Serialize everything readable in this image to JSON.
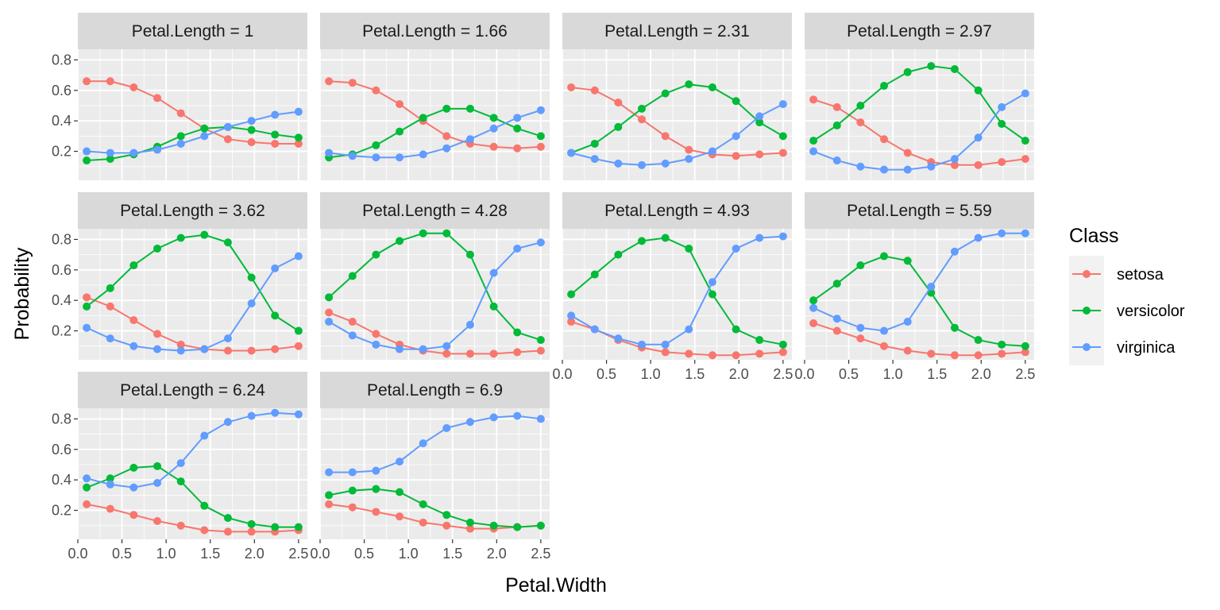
{
  "chart_data": {
    "type": "line",
    "xlabel": "Petal.Width",
    "ylabel": "Probability",
    "xlim": [
      0.0,
      2.6
    ],
    "ylim": [
      0.01,
      0.87
    ],
    "x_ticks": [
      "0.0",
      "0.5",
      "1.0",
      "1.5",
      "2.0",
      "2.5"
    ],
    "y_ticks": [
      "0.2",
      "0.4",
      "0.6",
      "0.8"
    ],
    "grid": true,
    "legend": {
      "title": "Class",
      "position": "right",
      "entries": [
        "setosa",
        "versicolor",
        "virginica"
      ]
    },
    "colors": {
      "setosa": "#F8766D",
      "versicolor": "#00BA38",
      "virginica": "#619CFF",
      "panel_bg": "#EBEBEB",
      "strip_bg": "#D9D9D9",
      "grid": "#FFFFFF"
    },
    "x": [
      0.1,
      0.367,
      0.633,
      0.9,
      1.167,
      1.433,
      1.7,
      1.967,
      2.233,
      2.5
    ],
    "panels": [
      {
        "label": "Petal.Length = 1",
        "series": [
          {
            "name": "setosa",
            "values": [
              0.66,
              0.66,
              0.62,
              0.55,
              0.45,
              0.35,
              0.28,
              0.26,
              0.25,
              0.25
            ]
          },
          {
            "name": "versicolor",
            "values": [
              0.14,
              0.15,
              0.18,
              0.23,
              0.3,
              0.35,
              0.36,
              0.34,
              0.31,
              0.29
            ]
          },
          {
            "name": "virginica",
            "values": [
              0.2,
              0.19,
              0.19,
              0.21,
              0.25,
              0.3,
              0.36,
              0.4,
              0.44,
              0.46
            ]
          }
        ]
      },
      {
        "label": "Petal.Length = 1.66",
        "series": [
          {
            "name": "setosa",
            "values": [
              0.66,
              0.65,
              0.6,
              0.51,
              0.4,
              0.3,
              0.25,
              0.23,
              0.22,
              0.23
            ]
          },
          {
            "name": "versicolor",
            "values": [
              0.16,
              0.18,
              0.24,
              0.33,
              0.42,
              0.48,
              0.48,
              0.42,
              0.35,
              0.3
            ]
          },
          {
            "name": "virginica",
            "values": [
              0.19,
              0.17,
              0.16,
              0.16,
              0.18,
              0.22,
              0.28,
              0.35,
              0.42,
              0.47
            ]
          }
        ]
      },
      {
        "label": "Petal.Length = 2.31",
        "series": [
          {
            "name": "setosa",
            "values": [
              0.62,
              0.6,
              0.52,
              0.41,
              0.3,
              0.21,
              0.18,
              0.17,
              0.18,
              0.19
            ]
          },
          {
            "name": "versicolor",
            "values": [
              0.19,
              0.25,
              0.36,
              0.48,
              0.58,
              0.64,
              0.62,
              0.53,
              0.39,
              0.3
            ]
          },
          {
            "name": "virginica",
            "values": [
              0.19,
              0.15,
              0.12,
              0.11,
              0.12,
              0.15,
              0.2,
              0.3,
              0.43,
              0.51
            ]
          }
        ]
      },
      {
        "label": "Petal.Length = 2.97",
        "series": [
          {
            "name": "setosa",
            "values": [
              0.54,
              0.49,
              0.39,
              0.28,
              0.19,
              0.13,
              0.11,
              0.11,
              0.13,
              0.15
            ]
          },
          {
            "name": "versicolor",
            "values": [
              0.27,
              0.37,
              0.5,
              0.63,
              0.72,
              0.76,
              0.74,
              0.6,
              0.38,
              0.27
            ]
          },
          {
            "name": "virginica",
            "values": [
              0.2,
              0.14,
              0.1,
              0.08,
              0.08,
              0.1,
              0.15,
              0.29,
              0.49,
              0.58
            ]
          }
        ]
      },
      {
        "label": "Petal.Length = 3.62",
        "series": [
          {
            "name": "setosa",
            "values": [
              0.42,
              0.36,
              0.27,
              0.18,
              0.11,
              0.08,
              0.07,
              0.07,
              0.08,
              0.1
            ]
          },
          {
            "name": "versicolor",
            "values": [
              0.36,
              0.48,
              0.63,
              0.74,
              0.81,
              0.83,
              0.78,
              0.55,
              0.3,
              0.2
            ]
          },
          {
            "name": "virginica",
            "values": [
              0.22,
              0.15,
              0.1,
              0.08,
              0.07,
              0.08,
              0.15,
              0.38,
              0.61,
              0.69
            ]
          }
        ]
      },
      {
        "label": "Petal.Length = 4.28",
        "series": [
          {
            "name": "setosa",
            "values": [
              0.32,
              0.26,
              0.18,
              0.11,
              0.07,
              0.05,
              0.05,
              0.05,
              0.06,
              0.07
            ]
          },
          {
            "name": "versicolor",
            "values": [
              0.42,
              0.56,
              0.7,
              0.79,
              0.84,
              0.84,
              0.7,
              0.36,
              0.19,
              0.14
            ]
          },
          {
            "name": "virginica",
            "values": [
              0.26,
              0.17,
              0.11,
              0.08,
              0.08,
              0.1,
              0.24,
              0.58,
              0.74,
              0.78
            ]
          }
        ]
      },
      {
        "label": "Petal.Length = 4.93",
        "series": [
          {
            "name": "setosa",
            "values": [
              0.26,
              0.21,
              0.14,
              0.09,
              0.06,
              0.05,
              0.04,
              0.04,
              0.05,
              0.06
            ]
          },
          {
            "name": "versicolor",
            "values": [
              0.44,
              0.57,
              0.7,
              0.79,
              0.81,
              0.74,
              0.44,
              0.21,
              0.14,
              0.11
            ]
          },
          {
            "name": "virginica",
            "values": [
              0.3,
              0.21,
              0.15,
              0.11,
              0.11,
              0.21,
              0.52,
              0.74,
              0.81,
              0.82
            ]
          }
        ]
      },
      {
        "label": "Petal.Length = 5.59",
        "series": [
          {
            "name": "setosa",
            "values": [
              0.25,
              0.2,
              0.15,
              0.1,
              0.07,
              0.05,
              0.04,
              0.04,
              0.05,
              0.06
            ]
          },
          {
            "name": "versicolor",
            "values": [
              0.4,
              0.51,
              0.63,
              0.69,
              0.66,
              0.45,
              0.22,
              0.14,
              0.11,
              0.1
            ]
          },
          {
            "name": "virginica",
            "values": [
              0.35,
              0.28,
              0.22,
              0.2,
              0.26,
              0.49,
              0.72,
              0.81,
              0.84,
              0.84
            ]
          }
        ]
      },
      {
        "label": "Petal.Length = 6.24",
        "series": [
          {
            "name": "setosa",
            "values": [
              0.24,
              0.21,
              0.17,
              0.13,
              0.1,
              0.07,
              0.06,
              0.06,
              0.06,
              0.07
            ]
          },
          {
            "name": "versicolor",
            "values": [
              0.35,
              0.41,
              0.48,
              0.49,
              0.39,
              0.23,
              0.15,
              0.11,
              0.09,
              0.09
            ]
          },
          {
            "name": "virginica",
            "values": [
              0.41,
              0.37,
              0.35,
              0.38,
              0.51,
              0.69,
              0.78,
              0.82,
              0.84,
              0.83
            ]
          }
        ]
      },
      {
        "label": "Petal.Length = 6.9",
        "series": [
          {
            "name": "setosa",
            "values": [
              0.24,
              0.22,
              0.19,
              0.16,
              0.12,
              0.1,
              0.08,
              0.08,
              0.09,
              0.1
            ]
          },
          {
            "name": "versicolor",
            "values": [
              0.3,
              0.33,
              0.34,
              0.32,
              0.24,
              0.17,
              0.12,
              0.1,
              0.09,
              0.1
            ]
          },
          {
            "name": "virginica",
            "values": [
              0.45,
              0.45,
              0.46,
              0.52,
              0.64,
              0.74,
              0.78,
              0.81,
              0.82,
              0.8
            ]
          }
        ]
      }
    ]
  }
}
